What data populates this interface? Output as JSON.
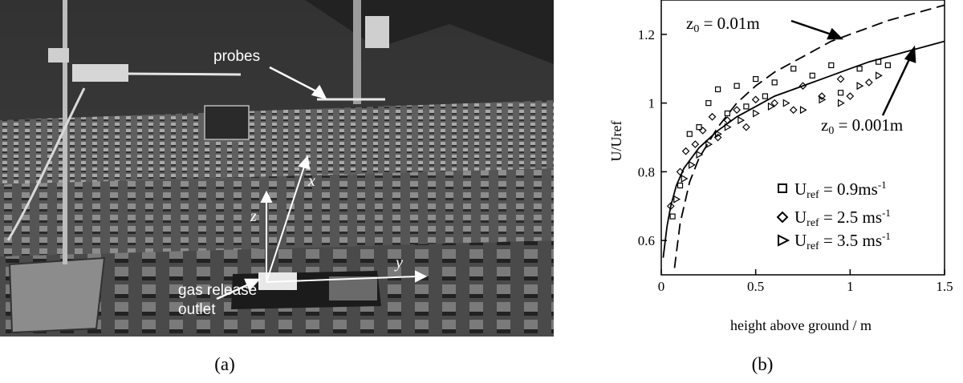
{
  "figure_a": {
    "caption": "(a)",
    "annotations": {
      "probes": "probes",
      "gas_release_1": "gas release",
      "gas_release_2": "outlet"
    },
    "axes_letters": {
      "x": "x",
      "y": "y",
      "z": "z"
    }
  },
  "figure_b": {
    "caption": "(b)",
    "curve_labels": {
      "z0_001": {
        "prefix": "z",
        "sub": "0",
        "rest": " = 0.01m"
      },
      "z0_0001": {
        "prefix": "z",
        "sub": "0",
        "rest": " = 0.001m"
      }
    },
    "legend": [
      {
        "marker": "square",
        "u": "U",
        "sub": "ref",
        "rest": " = 0.9ms",
        "sup": "-1"
      },
      {
        "marker": "diamond",
        "u": "U",
        "sub": "ref",
        "rest": " = 2.5 ms",
        "sup": "-1"
      },
      {
        "marker": "triangle",
        "u": "U",
        "sub": "ref",
        "rest": " = 3.5 ms",
        "sup": "-1"
      }
    ]
  },
  "chart_data": {
    "type": "scatter",
    "xlabel": "height above ground / m",
    "ylabel": "U/Uref",
    "xlim": [
      0,
      1.5
    ],
    "ylim": [
      0.5,
      1.3
    ],
    "xticks": [
      "0",
      "0.5",
      "1",
      "1.5"
    ],
    "yticks": [
      "0.6",
      "0.8",
      "1",
      "1.2"
    ],
    "xtick_values": [
      0,
      0.5,
      1,
      1.5
    ],
    "ytick_values": [
      0.6,
      0.8,
      1.0,
      1.2
    ],
    "series": [
      {
        "name": "U_ref = 0.9ms-1",
        "marker": "square",
        "x": [
          0.06,
          0.1,
          0.15,
          0.2,
          0.25,
          0.3,
          0.35,
          0.4,
          0.45,
          0.5,
          0.55,
          0.6,
          0.7,
          0.8,
          0.9,
          0.95,
          1.05,
          1.15,
          1.2
        ],
        "y": [
          0.67,
          0.76,
          0.91,
          0.93,
          1.0,
          1.04,
          0.97,
          1.05,
          0.99,
          1.07,
          1.02,
          1.06,
          1.1,
          1.08,
          1.11,
          1.03,
          1.1,
          1.12,
          1.11
        ]
      },
      {
        "name": "U_ref = 2.5 ms-1",
        "marker": "diamond",
        "x": [
          0.05,
          0.1,
          0.13,
          0.18,
          0.22,
          0.27,
          0.3,
          0.35,
          0.4,
          0.45,
          0.5,
          0.6,
          0.7,
          0.75,
          0.85,
          0.95,
          1.0,
          1.1
        ],
        "y": [
          0.7,
          0.8,
          0.86,
          0.88,
          0.92,
          0.96,
          0.9,
          0.95,
          0.98,
          0.93,
          1.01,
          1.0,
          0.98,
          1.05,
          1.02,
          1.07,
          1.02,
          1.06
        ]
      },
      {
        "name": "U_ref = 3.5 ms-1",
        "marker": "triangle",
        "x": [
          0.08,
          0.12,
          0.16,
          0.2,
          0.25,
          0.3,
          0.35,
          0.42,
          0.5,
          0.58,
          0.66,
          0.75,
          0.85,
          0.95,
          1.05,
          1.15
        ],
        "y": [
          0.72,
          0.78,
          0.82,
          0.85,
          0.88,
          0.91,
          0.93,
          0.95,
          0.97,
          0.99,
          1.0,
          0.98,
          1.01,
          1.0,
          1.05,
          1.08
        ]
      }
    ],
    "curves": [
      {
        "name": "z0 = 0.01m",
        "style": "dashed",
        "x": [
          0.07,
          0.1,
          0.15,
          0.2,
          0.3,
          0.4,
          0.5,
          0.6,
          0.7,
          0.8,
          0.9,
          1.0,
          1.1,
          1.2,
          1.3,
          1.4,
          1.5
        ],
        "y": [
          0.52,
          0.65,
          0.77,
          0.84,
          0.93,
          1.0,
          1.05,
          1.09,
          1.12,
          1.15,
          1.18,
          1.2,
          1.22,
          1.24,
          1.255,
          1.27,
          1.285
        ]
      },
      {
        "name": "z0 = 0.001m",
        "style": "solid",
        "x": [
          0.01,
          0.03,
          0.05,
          0.08,
          0.12,
          0.2,
          0.3,
          0.4,
          0.5,
          0.6,
          0.7,
          0.8,
          0.9,
          1.0,
          1.1,
          1.2,
          1.3,
          1.4,
          1.5
        ],
        "y": [
          0.55,
          0.64,
          0.7,
          0.76,
          0.81,
          0.87,
          0.92,
          0.96,
          0.99,
          1.02,
          1.04,
          1.06,
          1.08,
          1.1,
          1.12,
          1.135,
          1.15,
          1.165,
          1.18
        ]
      }
    ]
  }
}
